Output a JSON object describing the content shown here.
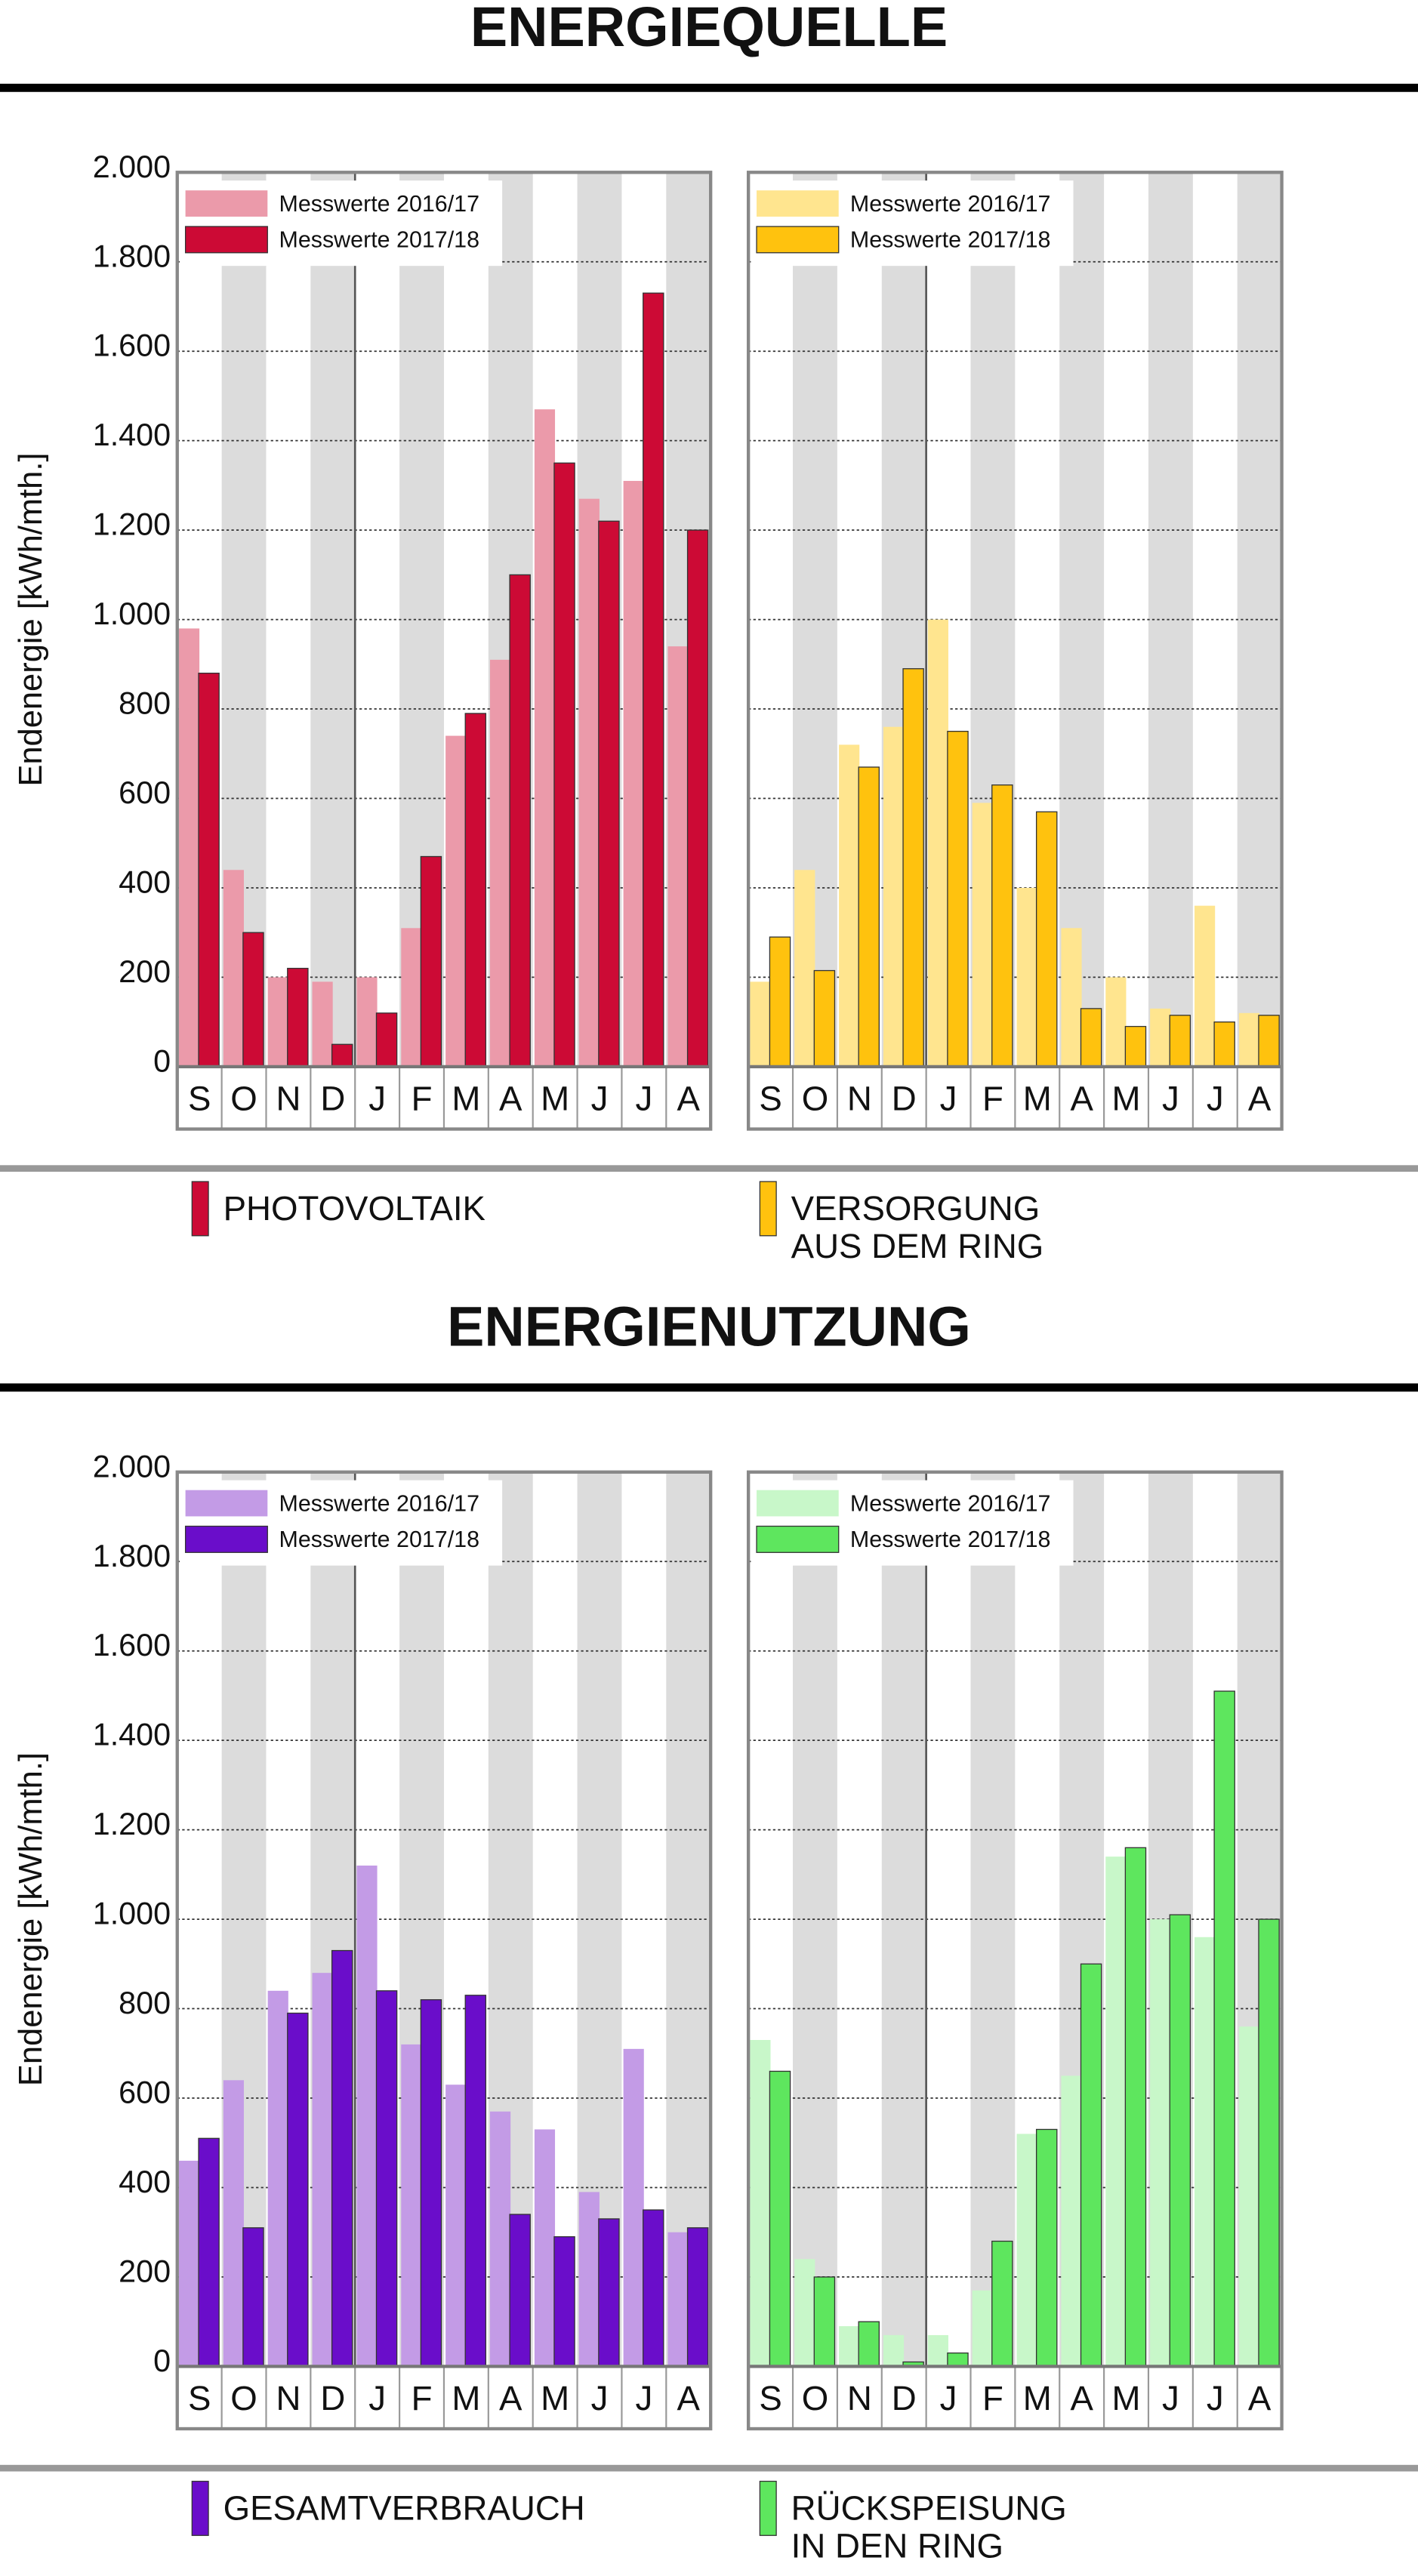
{
  "sections": [
    {
      "title": "ENERGIEQUELLE",
      "legend": [
        [
          "PHOTOVOLTAIK"
        ],
        [
          "VERSORGUNG",
          "AUS DEM RING"
        ]
      ]
    },
    {
      "title": "ENERGIENUTZUNG",
      "legend": [
        [
          "GESAMTVERBRAUCH"
        ],
        [
          "RÜCKSPEISUNG",
          "IN DEN RING"
        ]
      ]
    }
  ],
  "chart_data": [
    {
      "type": "bar",
      "ylabel": "Endenergie [kWh/mth.]",
      "categories": [
        "S",
        "O",
        "N",
        "D",
        "J",
        "F",
        "M",
        "A",
        "M",
        "J",
        "J",
        "A"
      ],
      "ylim": [
        0,
        2000
      ],
      "yticks": [
        0,
        200,
        400,
        600,
        800,
        {
          "value": 1000,
          "label": "1.000"
        },
        {
          "value": 1200,
          "label": "1.200"
        },
        {
          "value": 1400,
          "label": "1.400"
        },
        {
          "value": 1600,
          "label": "1.600"
        },
        {
          "value": 1800,
          "label": "1.800"
        },
        {
          "value": 2000,
          "label": "2.000"
        }
      ],
      "series": [
        {
          "name": "Messwerte 2016/17",
          "color": "#eb9aaa",
          "values": [
            980,
            440,
            200,
            190,
            200,
            310,
            740,
            910,
            1470,
            1270,
            1310,
            940
          ]
        },
        {
          "name": "Messwerte 2017/18",
          "color": "#cc0a35",
          "values": [
            880,
            300,
            220,
            50,
            120,
            470,
            790,
            1100,
            1350,
            1220,
            1730,
            1200
          ]
        }
      ]
    },
    {
      "type": "bar",
      "categories": [
        "S",
        "O",
        "N",
        "D",
        "J",
        "F",
        "M",
        "A",
        "M",
        "J",
        "J",
        "A"
      ],
      "ylim": [
        0,
        2000
      ],
      "yticks": [
        0,
        200,
        400,
        600,
        800,
        1000,
        1200,
        1400,
        1600,
        1800,
        2000
      ],
      "series": [
        {
          "name": "Messwerte 2016/17",
          "color": "#ffe58f",
          "values": [
            190,
            440,
            720,
            760,
            1000,
            590,
            400,
            310,
            200,
            130,
            360,
            120
          ]
        },
        {
          "name": "Messwerte 2017/18",
          "color": "#ffc20e",
          "values": [
            290,
            215,
            670,
            890,
            750,
            630,
            570,
            130,
            90,
            115,
            100,
            115
          ]
        }
      ]
    },
    {
      "type": "bar",
      "ylabel": "Endenergie [kWh/mth.]",
      "categories": [
        "S",
        "O",
        "N",
        "D",
        "J",
        "F",
        "M",
        "A",
        "M",
        "J",
        "J",
        "A"
      ],
      "ylim": [
        0,
        2000
      ],
      "yticks": [
        0,
        200,
        400,
        600,
        800,
        {
          "value": 1000,
          "label": "1.000"
        },
        {
          "value": 1200,
          "label": "1.200"
        },
        {
          "value": 1400,
          "label": "1.400"
        },
        {
          "value": 1600,
          "label": "1.600"
        },
        {
          "value": 1800,
          "label": "1.800"
        },
        {
          "value": 2000,
          "label": "2.000"
        }
      ],
      "series": [
        {
          "name": "Messwerte 2016/17",
          "color": "#c39be6",
          "values": [
            460,
            640,
            840,
            880,
            1120,
            720,
            630,
            570,
            530,
            390,
            710,
            300
          ]
        },
        {
          "name": "Messwerte 2017/18",
          "color": "#6a0dca",
          "values": [
            510,
            310,
            790,
            930,
            840,
            820,
            830,
            340,
            290,
            330,
            350,
            310
          ]
        }
      ]
    },
    {
      "type": "bar",
      "categories": [
        "S",
        "O",
        "N",
        "D",
        "J",
        "F",
        "M",
        "A",
        "M",
        "J",
        "J",
        "A"
      ],
      "ylim": [
        0,
        2000
      ],
      "yticks": [
        0,
        200,
        400,
        600,
        800,
        1000,
        1200,
        1400,
        1600,
        1800,
        2000
      ],
      "series": [
        {
          "name": "Messwerte 2016/17",
          "color": "#c8f7c9",
          "values": [
            730,
            240,
            90,
            70,
            70,
            170,
            520,
            650,
            1140,
            1000,
            960,
            760
          ]
        },
        {
          "name": "Messwerte 2017/18",
          "color": "#5ee65e",
          "values": [
            660,
            200,
            100,
            10,
            30,
            280,
            530,
            900,
            1160,
            1010,
            1510,
            1000
          ]
        }
      ]
    }
  ]
}
